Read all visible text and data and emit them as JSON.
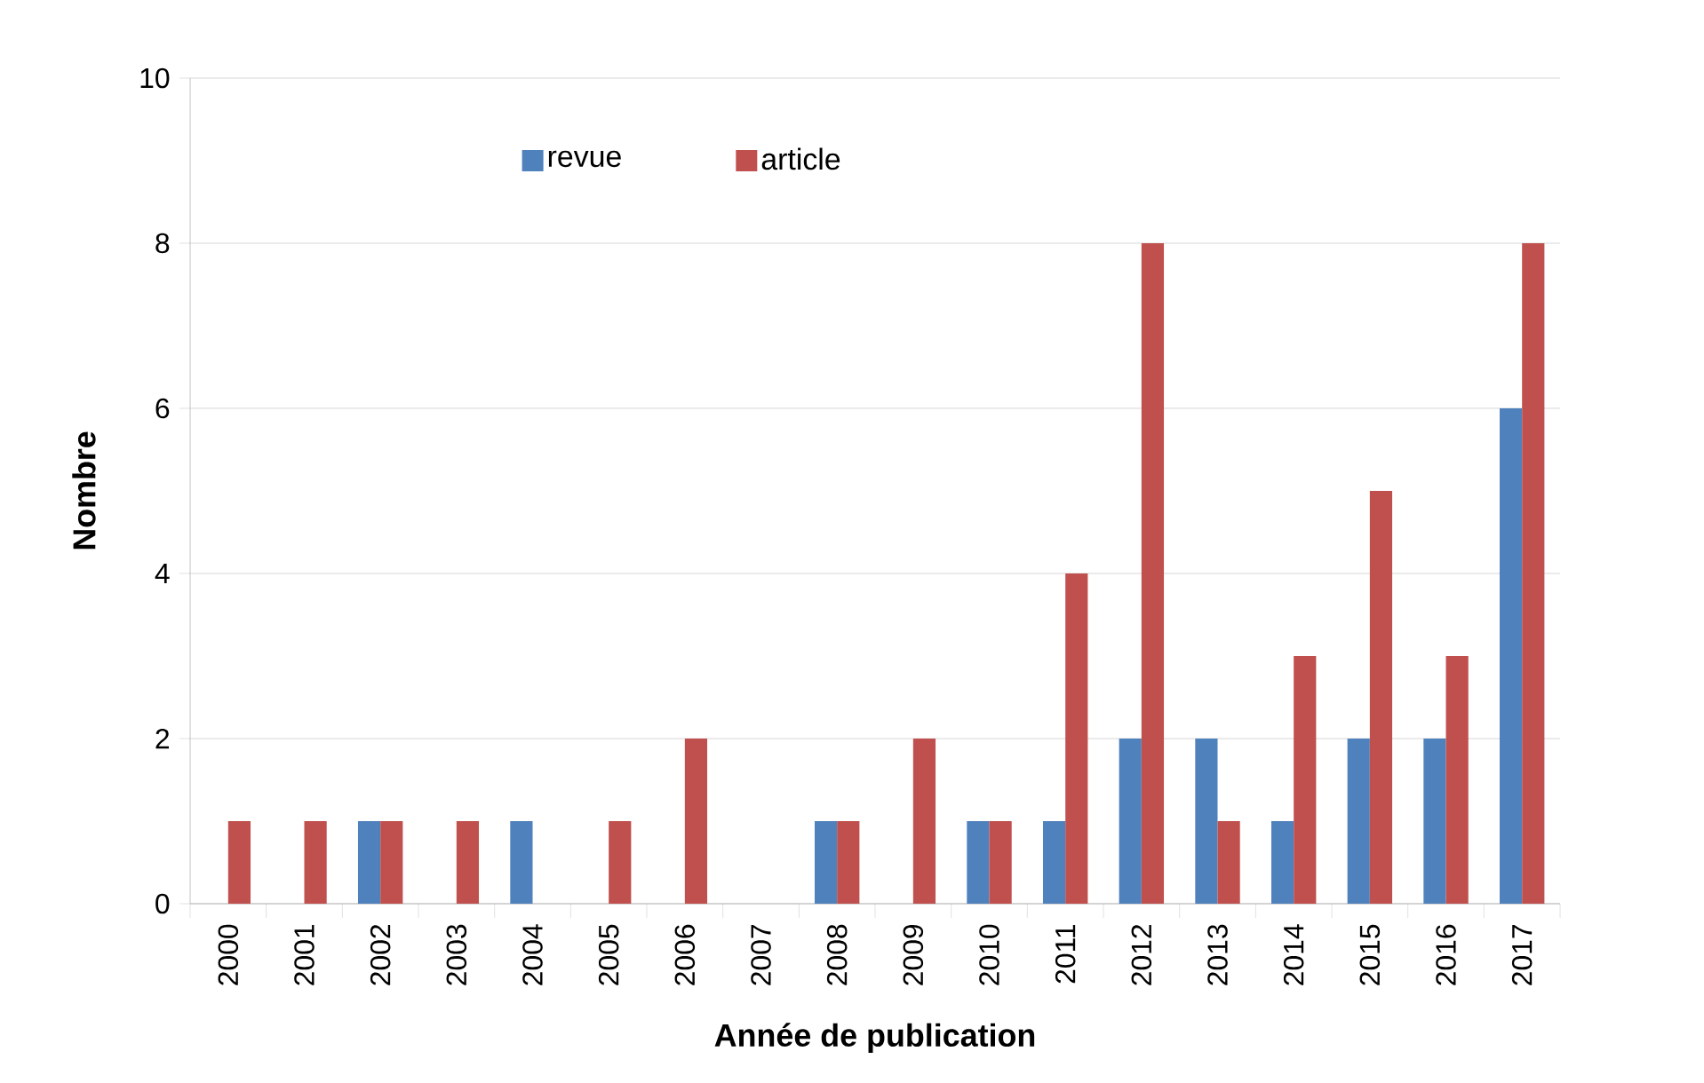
{
  "chart_data": {
    "type": "bar",
    "xlabel": "Année de publication",
    "ylabel": "Nombre",
    "categories": [
      "2000",
      "2001",
      "2002",
      "2003",
      "2004",
      "2005",
      "2006",
      "2007",
      "2008",
      "2009",
      "2010",
      "2011",
      "2012",
      "2013",
      "2014",
      "2015",
      "2016",
      "2017"
    ],
    "series": [
      {
        "name": "revue",
        "color": "#4f81bd",
        "values": [
          0,
          0,
          1,
          0,
          1,
          0,
          0,
          0,
          1,
          0,
          1,
          1,
          2,
          2,
          1,
          2,
          2,
          6
        ]
      },
      {
        "name": "article",
        "color": "#c0504d",
        "values": [
          1,
          1,
          1,
          1,
          0,
          1,
          2,
          0,
          1,
          2,
          1,
          4,
          8,
          1,
          3,
          5,
          3,
          8
        ]
      }
    ],
    "ylim": [
      0,
      10
    ],
    "yticks": [
      0,
      2,
      4,
      6,
      8,
      10
    ],
    "grid": "y",
    "legend": "top"
  }
}
